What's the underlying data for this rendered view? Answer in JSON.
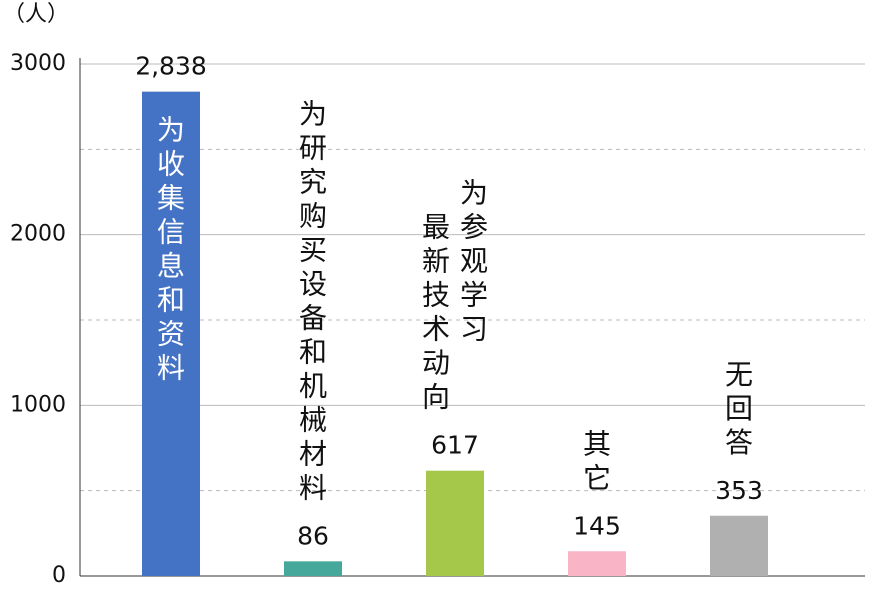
{
  "chart_data": {
    "type": "bar",
    "y_unit": "（人）",
    "categories": [
      "为收集信息和资料",
      "为研究购买设备和机械材料",
      "为参观学习最新技术动向",
      "其它",
      "无回答"
    ],
    "values": [
      2838,
      86,
      617,
      145,
      353
    ],
    "value_labels": [
      "2,838",
      "86",
      "617",
      "145",
      "353"
    ],
    "colors": [
      "#4472c4",
      "#45a89a",
      "#a5c84a",
      "#f9b4c6",
      "#b0b0b0"
    ],
    "ylim": [
      0,
      3000
    ],
    "yticks": [
      0,
      1000,
      2000,
      3000
    ],
    "minor_yticks": [
      500,
      1500,
      2500
    ],
    "grid": true
  }
}
